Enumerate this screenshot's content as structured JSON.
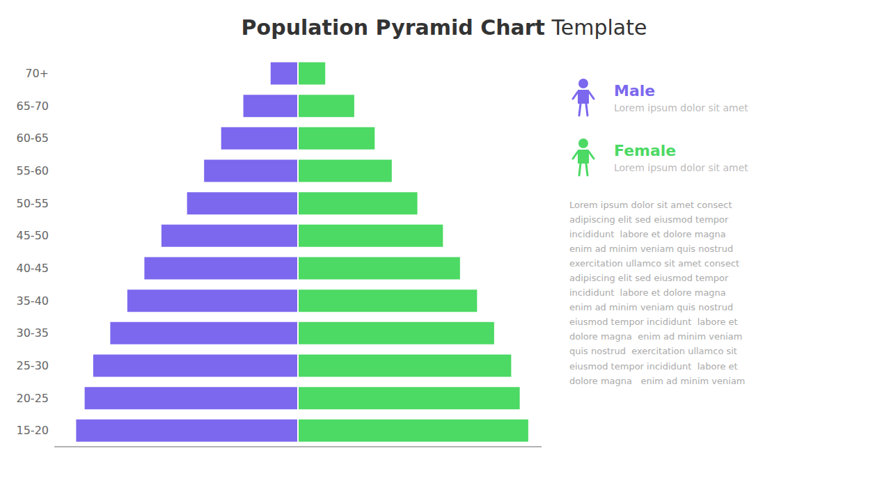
{
  "chart_data": {
    "type": "bar",
    "orientation": "horizontal",
    "title": "Population Pyramid Chart",
    "subtitle": "Template",
    "categories": [
      "15-20",
      "20-25",
      "25-30",
      "30-35",
      "35-40",
      "40-45",
      "45-50",
      "50-55",
      "55-60",
      "60-65",
      "65-70",
      "70+"
    ],
    "series": [
      {
        "name": "Male",
        "color": "#7B68EE",
        "values": [
          -13.0,
          -12.5,
          -12.0,
          -11.0,
          -10.0,
          -9.0,
          -8.0,
          -6.5,
          -5.5,
          -4.5,
          -3.2,
          -1.6
        ]
      },
      {
        "name": "Female",
        "color": "#4CD964",
        "values": [
          13.5,
          13.0,
          12.5,
          11.5,
          10.5,
          9.5,
          8.5,
          7.0,
          5.5,
          4.5,
          3.3,
          1.6
        ]
      }
    ],
    "xlim": [
      -14.28,
      14.28
    ],
    "xticks": [],
    "tick_labels": "y",
    "grid": false,
    "annotations": [
      "Lorem ipsum dolor sit amet",
      "Lorem ipsum dolor sit amet",
      "Lorem ipsum dolor sit amet consect\nadipiscing elit sed eiusmod tempor\nincididunt  labore et dolore magna\nenim ad minim veniam quis nostrud\nexercitation ullamco sit amet consect\nadipiscing elit sed eiusmod tempor\nincididunt  labore et dolore magna\nenim ad minim veniam quis nostrud\neiusmod tempor incididunt  labore et\ndolore magna  enim ad minim veniam\nquis nostrud  exercitation ullamco sit\neiusmod tempor incididunt  labore et\ndolore magna   enim ad minim veniam"
    ]
  }
}
